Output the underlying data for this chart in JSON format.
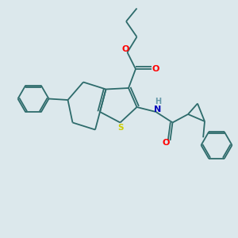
{
  "bg_color": "#dce8ec",
  "bond_color": "#2d6b6b",
  "O_color": "#ff0000",
  "N_color": "#0000bb",
  "S_color": "#cccc00",
  "H_color": "#6699aa",
  "lw": 1.3,
  "figsize": [
    3.0,
    3.0
  ],
  "dpi": 100,
  "xlim": [
    0,
    10
  ],
  "ylim": [
    0,
    10
  ]
}
